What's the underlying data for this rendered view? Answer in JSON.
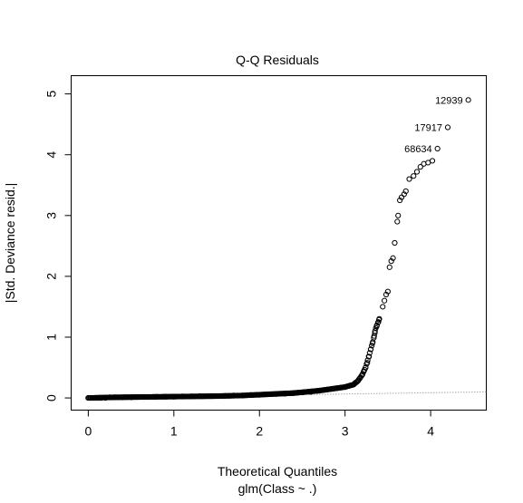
{
  "chart_data": {
    "type": "scatter",
    "title": "Q-Q Residuals",
    "xlabel": "Theoretical Quantiles",
    "subtitle": "glm(Class ~ .)",
    "ylabel": "|Std. Deviance resid.|",
    "xlim": [
      -0.2,
      4.65
    ],
    "ylim": [
      -0.2,
      5.3
    ],
    "xticks": [
      0,
      1,
      2,
      3,
      4
    ],
    "yticks": [
      0,
      1,
      2,
      3,
      4,
      5
    ],
    "x_tick_labels": [
      "0",
      "1",
      "2",
      "3",
      "4"
    ],
    "y_tick_labels": [
      "0",
      "1",
      "2",
      "3",
      "4",
      "5"
    ],
    "grid": false,
    "legend": "none",
    "reference_line": {
      "style": "dotted",
      "color": "#808080",
      "x": [
        0,
        4.65
      ],
      "y": [
        0.0,
        0.1
      ]
    },
    "curve_points": [
      [
        0.0,
        0.0
      ],
      [
        0.3,
        0.01
      ],
      [
        0.6,
        0.015
      ],
      [
        0.9,
        0.02
      ],
      [
        1.2,
        0.025
      ],
      [
        1.5,
        0.03
      ],
      [
        1.8,
        0.04
      ],
      [
        2.1,
        0.06
      ],
      [
        2.4,
        0.08
      ],
      [
        2.7,
        0.12
      ],
      [
        2.9,
        0.16
      ],
      [
        3.0,
        0.18
      ],
      [
        3.1,
        0.22
      ],
      [
        3.15,
        0.28
      ],
      [
        3.2,
        0.38
      ],
      [
        3.24,
        0.5
      ],
      [
        3.27,
        0.65
      ],
      [
        3.3,
        0.8
      ],
      [
        3.33,
        0.95
      ],
      [
        3.36,
        1.15
      ],
      [
        3.4,
        1.3
      ],
      [
        3.45,
        1.5
      ],
      [
        3.48,
        1.7
      ],
      [
        3.52,
        2.1
      ],
      [
        3.55,
        2.25
      ],
      [
        3.58,
        2.5
      ],
      [
        3.61,
        2.9
      ],
      [
        3.63,
        3.15
      ],
      [
        3.66,
        3.3
      ],
      [
        3.7,
        3.4
      ],
      [
        3.75,
        3.55
      ],
      [
        3.8,
        3.65
      ],
      [
        3.86,
        3.72
      ],
      [
        3.92,
        3.8
      ],
      [
        3.98,
        3.88
      ]
    ],
    "points": [
      [
        0.0,
        0.0
      ],
      [
        0.03,
        0.0
      ],
      [
        0.06,
        0.0
      ],
      [
        0.09,
        0.0
      ],
      [
        0.12,
        0.0
      ],
      [
        0.15,
        0.0
      ],
      [
        0.2,
        0.0
      ],
      [
        0.25,
        0.01
      ],
      [
        0.3,
        0.01
      ],
      [
        0.4,
        0.01
      ],
      [
        0.5,
        0.01
      ],
      [
        0.6,
        0.015
      ],
      [
        0.7,
        0.015
      ],
      [
        0.8,
        0.02
      ],
      [
        0.9,
        0.02
      ],
      [
        1.0,
        0.02
      ],
      [
        1.1,
        0.025
      ],
      [
        1.2,
        0.025
      ],
      [
        1.3,
        0.03
      ],
      [
        1.4,
        0.03
      ],
      [
        1.5,
        0.03
      ],
      [
        1.6,
        0.035
      ],
      [
        1.7,
        0.04
      ],
      [
        1.8,
        0.04
      ],
      [
        1.9,
        0.05
      ],
      [
        2.0,
        0.05
      ],
      [
        2.1,
        0.06
      ],
      [
        2.2,
        0.065
      ],
      [
        2.3,
        0.07
      ],
      [
        2.4,
        0.08
      ],
      [
        2.5,
        0.09
      ],
      [
        2.6,
        0.1
      ],
      [
        2.7,
        0.12
      ],
      [
        2.75,
        0.13
      ],
      [
        2.8,
        0.14
      ],
      [
        2.85,
        0.15
      ],
      [
        2.9,
        0.16
      ],
      [
        2.95,
        0.17
      ],
      [
        3.0,
        0.18
      ],
      [
        3.05,
        0.2
      ],
      [
        3.1,
        0.22
      ],
      [
        3.12,
        0.25
      ],
      [
        3.15,
        0.28
      ],
      [
        3.17,
        0.32
      ],
      [
        3.2,
        0.38
      ],
      [
        3.22,
        0.44
      ],
      [
        3.24,
        0.5
      ],
      [
        3.26,
        0.58
      ],
      [
        3.28,
        0.68
      ],
      [
        3.3,
        0.8
      ],
      [
        3.32,
        0.9
      ],
      [
        3.34,
        1.02
      ],
      [
        3.35,
        1.1
      ],
      [
        3.37,
        1.18
      ],
      [
        3.39,
        1.25
      ],
      [
        3.4,
        1.3
      ],
      [
        3.44,
        1.5
      ],
      [
        3.46,
        1.6
      ],
      [
        3.48,
        1.7
      ],
      [
        3.5,
        1.75
      ],
      [
        3.52,
        2.15
      ],
      [
        3.54,
        2.25
      ],
      [
        3.56,
        2.3
      ],
      [
        3.58,
        2.55
      ],
      [
        3.61,
        2.9
      ],
      [
        3.62,
        3.0
      ],
      [
        3.64,
        3.25
      ],
      [
        3.66,
        3.3
      ],
      [
        3.69,
        3.35
      ],
      [
        3.71,
        3.4
      ],
      [
        3.75,
        3.6
      ],
      [
        3.8,
        3.65
      ],
      [
        3.84,
        3.72
      ],
      [
        3.88,
        3.8
      ],
      [
        3.92,
        3.85
      ],
      [
        3.97,
        3.87
      ],
      [
        4.02,
        3.9
      ],
      [
        4.08,
        4.1
      ],
      [
        4.2,
        4.45
      ],
      [
        4.44,
        4.9
      ]
    ],
    "annotations": [
      {
        "x": 4.44,
        "y": 4.9,
        "label": "12939"
      },
      {
        "x": 4.2,
        "y": 4.45,
        "label": "17917"
      },
      {
        "x": 4.08,
        "y": 4.1,
        "label": "68634"
      }
    ]
  }
}
